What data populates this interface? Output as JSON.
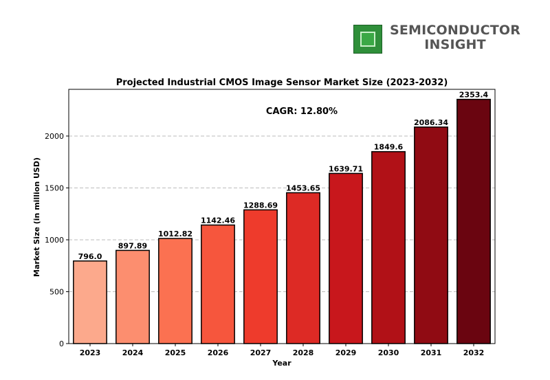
{
  "logo": {
    "line1": "SEMICONDUCTOR",
    "line2": "INSIGHT",
    "icon": "chip-icon"
  },
  "chart_data": {
    "type": "bar",
    "title": "Projected Industrial CMOS Image Sensor Market Size (2023-2032)",
    "xlabel": "Year",
    "ylabel": "Market Size (in million USD)",
    "annotation": "CAGR: 12.80%",
    "categories": [
      "2023",
      "2024",
      "2025",
      "2026",
      "2027",
      "2028",
      "2029",
      "2030",
      "2031",
      "2032"
    ],
    "values": [
      796.0,
      897.89,
      1012.82,
      1142.46,
      1288.69,
      1453.65,
      1639.71,
      1849.6,
      2086.34,
      2353.4
    ],
    "value_labels": [
      "796.0",
      "897.89",
      "1012.82",
      "1142.46",
      "1288.69",
      "1453.65",
      "1639.71",
      "1849.6",
      "2086.34",
      "2353.4"
    ],
    "ylim": [
      0,
      2450
    ],
    "yticks": [
      0,
      500,
      1000,
      1500,
      2000
    ],
    "grid": "horizontal dashed",
    "colors": [
      "#fca98c",
      "#fc8e6f",
      "#fb7151",
      "#f6563d",
      "#ee3b2c",
      "#dd2a25",
      "#c8171c",
      "#b11117",
      "#900b13",
      "#6a0510"
    ]
  }
}
